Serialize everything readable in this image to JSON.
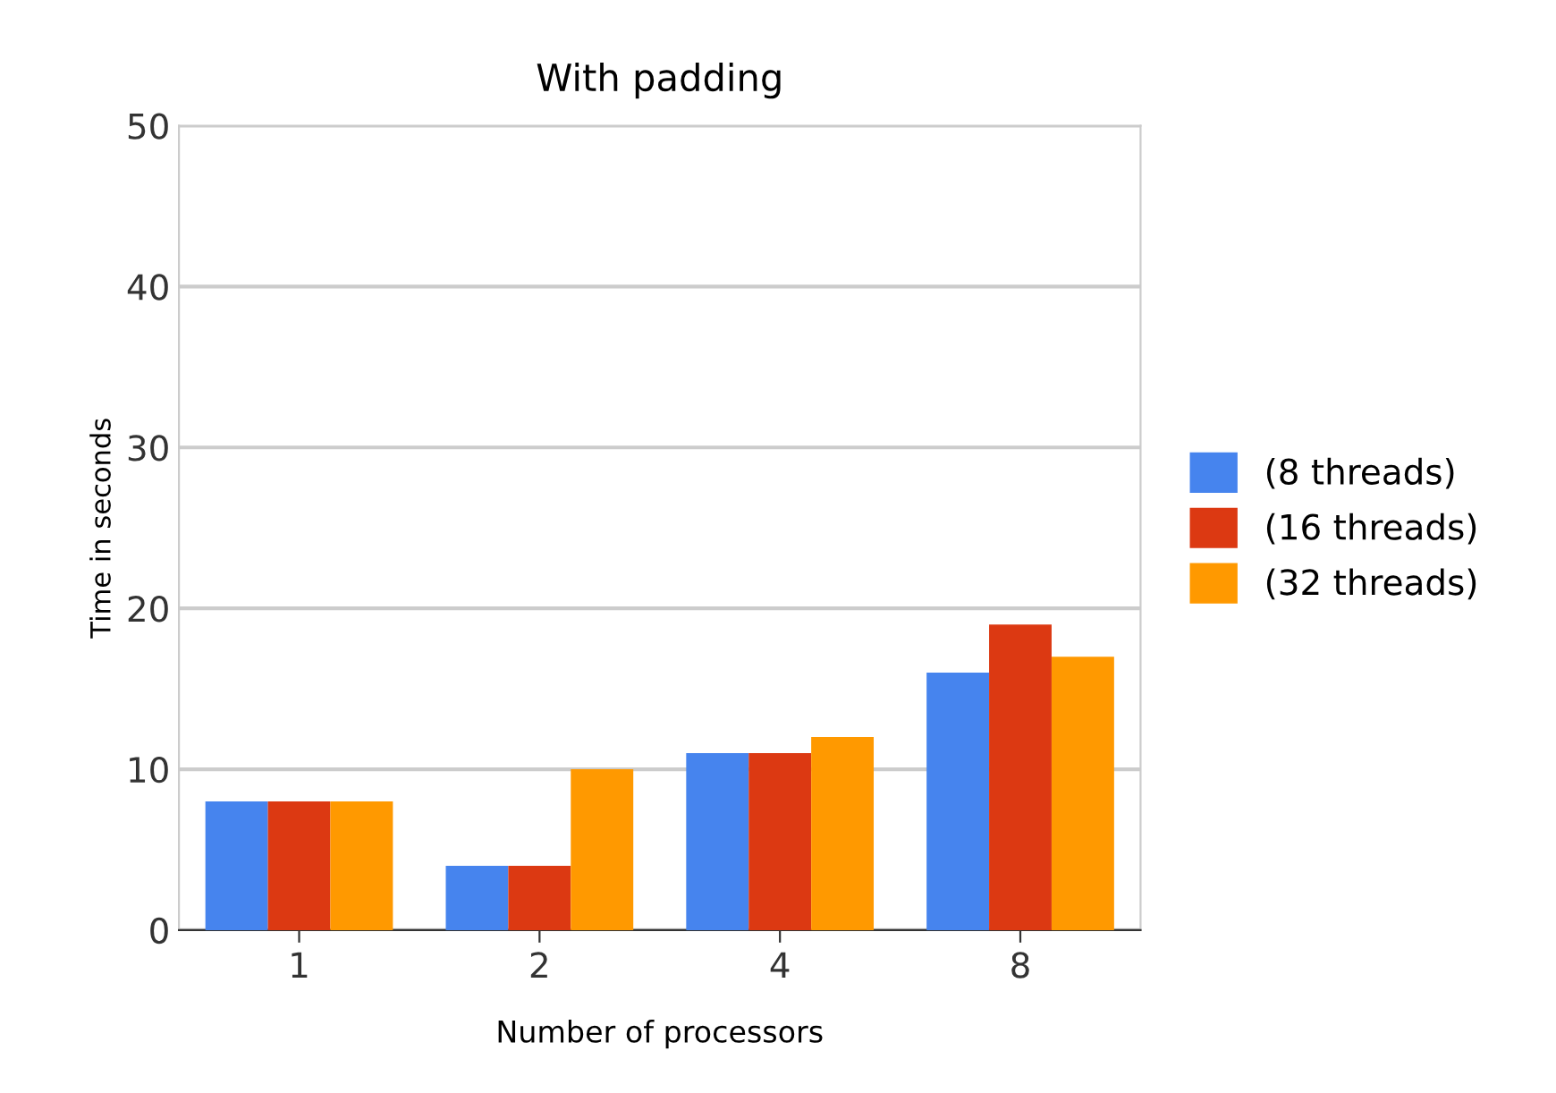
{
  "chart_data": {
    "type": "bar",
    "title": "With padding",
    "xlabel": "Number of processors",
    "ylabel": "Time in seconds",
    "categories": [
      "1",
      "2",
      "4",
      "8"
    ],
    "series": [
      {
        "name": "(8 threads)",
        "color": "#4684ee",
        "values": [
          8,
          4,
          11,
          16
        ]
      },
      {
        "name": "(16 threads)",
        "color": "#dc3912",
        "values": [
          8,
          4,
          11,
          19
        ]
      },
      {
        "name": "(32 threads)",
        "color": "#ff9900",
        "values": [
          8,
          10,
          12,
          17
        ]
      }
    ],
    "ylim": [
      0,
      50
    ],
    "yticks": [
      0,
      10,
      20,
      30,
      40,
      50
    ],
    "grid": "y",
    "legend": "right"
  }
}
